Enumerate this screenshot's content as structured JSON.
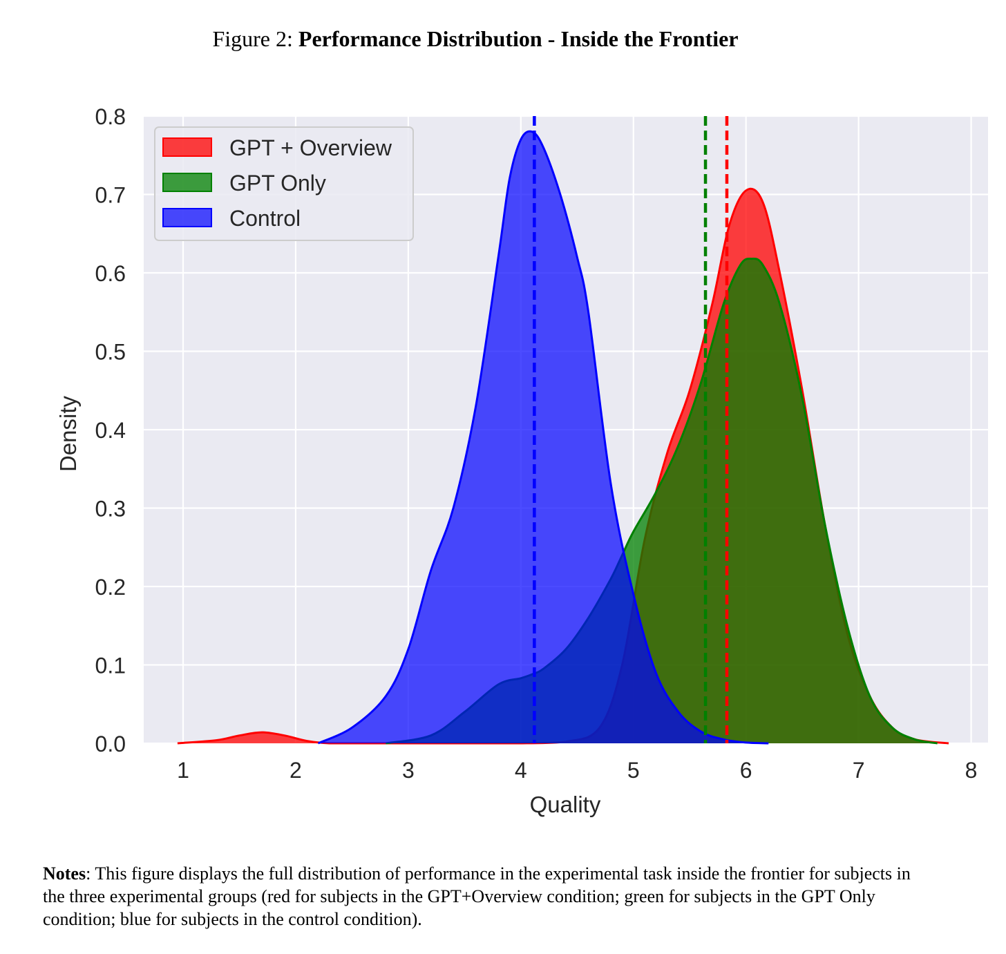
{
  "figure": {
    "prefix": "Figure 2:",
    "title": "Performance Distribution - Inside the Frontier"
  },
  "notes": {
    "label": "Notes",
    "text": ": This figure displays the full distribution of performance in the experimental task inside the frontier for subjects in the three experimental groups (red for subjects in the GPT+Overview condition; green for subjects in the GPT Only condition; blue for subjects in the control condition)."
  },
  "chart_data": {
    "type": "area",
    "xlabel": "Quality",
    "ylabel": "Density",
    "xlim": [
      0.65,
      8.15
    ],
    "ylim": [
      0,
      0.8
    ],
    "xticks": [
      1,
      2,
      3,
      4,
      5,
      6,
      7,
      8
    ],
    "yticks": [
      0.0,
      0.1,
      0.2,
      0.3,
      0.4,
      0.5,
      0.6,
      0.7,
      0.8
    ],
    "ytick_labels": [
      "0.0",
      "0.1",
      "0.2",
      "0.3",
      "0.4",
      "0.5",
      "0.6",
      "0.7",
      "0.8"
    ],
    "grid": true,
    "background": "#eaeaf2",
    "legend_position": "top-left",
    "series": [
      {
        "name": "GPT + Overview",
        "color": "#ff0000",
        "fill": "rgba(255,0,0,0.75)",
        "mean": 5.83,
        "x": [
          0.95,
          1.3,
          1.5,
          1.7,
          1.9,
          2.1,
          2.3,
          2.6,
          3.0,
          3.5,
          4.0,
          4.4,
          4.7,
          4.9,
          5.1,
          5.3,
          5.5,
          5.7,
          5.85,
          6.0,
          6.15,
          6.3,
          6.5,
          6.7,
          6.9,
          7.1,
          7.3,
          7.5,
          7.8
        ],
        "y": [
          0.0,
          0.004,
          0.01,
          0.014,
          0.01,
          0.003,
          0.0,
          0.0,
          0.0,
          0.0,
          0.0,
          0.002,
          0.02,
          0.1,
          0.26,
          0.37,
          0.45,
          0.56,
          0.66,
          0.705,
          0.69,
          0.6,
          0.45,
          0.28,
          0.14,
          0.06,
          0.02,
          0.005,
          0.0
        ]
      },
      {
        "name": "GPT Only",
        "color": "#008000",
        "fill": "rgba(0,128,0,0.75)",
        "mean": 5.64,
        "x": [
          2.8,
          3.2,
          3.5,
          3.8,
          4.0,
          4.1,
          4.2,
          4.4,
          4.6,
          4.8,
          4.9,
          5.0,
          5.2,
          5.4,
          5.6,
          5.8,
          5.95,
          6.05,
          6.15,
          6.3,
          6.5,
          6.7,
          6.9,
          7.1,
          7.3,
          7.5,
          7.7
        ],
        "y": [
          0.0,
          0.01,
          0.04,
          0.075,
          0.083,
          0.088,
          0.095,
          0.12,
          0.16,
          0.21,
          0.24,
          0.27,
          0.32,
          0.38,
          0.46,
          0.56,
          0.61,
          0.618,
          0.61,
          0.56,
          0.44,
          0.28,
          0.15,
          0.06,
          0.02,
          0.005,
          0.0
        ]
      },
      {
        "name": "Control",
        "color": "#0000ff",
        "fill": "rgba(0,0,255,0.7)",
        "mean": 4.12,
        "x": [
          2.2,
          2.5,
          2.8,
          3.0,
          3.2,
          3.4,
          3.6,
          3.8,
          3.9,
          4.0,
          4.1,
          4.2,
          4.35,
          4.5,
          4.6,
          4.8,
          5.0,
          5.2,
          5.4,
          5.6,
          5.8,
          6.0,
          6.2
        ],
        "y": [
          0.0,
          0.02,
          0.06,
          0.12,
          0.22,
          0.3,
          0.43,
          0.62,
          0.72,
          0.77,
          0.78,
          0.76,
          0.7,
          0.62,
          0.55,
          0.33,
          0.19,
          0.09,
          0.04,
          0.015,
          0.005,
          0.001,
          0.0
        ]
      }
    ]
  }
}
